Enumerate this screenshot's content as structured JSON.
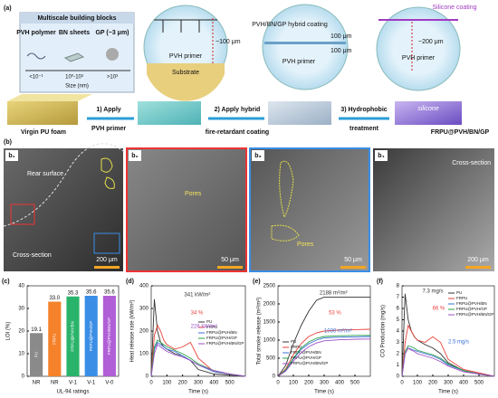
{
  "figure": {
    "a": {
      "label": "(a)",
      "blocks_title": "Multiscale building blocks",
      "pvh": "PVH polymer",
      "bn": "BN sheets",
      "gp": "GP (~3 μm)",
      "size_pvh": "<10⁻¹",
      "size_bn": "10⁰-10³",
      "size_gp": ">10³",
      "size_axis": "Size (nm)",
      "c1_thick": "~100 μm",
      "c1_primer": "PVH primer",
      "c1_substrate": "Substrate",
      "c2_coating": "PVH/BN/GP hybrid coating",
      "c2_t1": "100 μm",
      "c2_t2": "100 μm",
      "c2_primer": "PVH primer",
      "c3_silicone": "Silicone coating",
      "c3_thick": "~200 μm",
      "c3_primer": "PVH primer",
      "foam": "Virgin PU foam",
      "step1a": "1) Apply",
      "step1b": "PVH primer",
      "step2a": "2) Apply hybrid",
      "step2b": "fire-retardant coating",
      "step3a": "3) Hydrophobic",
      "step3b": "treatment",
      "product": "FRPU@PVH/BN/GP",
      "silicone": "silicone"
    },
    "b": {
      "label": "(b)",
      "b1": "b₁",
      "b2": "b₂",
      "b3": "b₃",
      "b4": "b₄",
      "b1_rear": "Rear surface",
      "b1_cross": "Cross-section",
      "b1_scale": "200 μm",
      "b2_pores": "Pores",
      "b2_scale": "50 μm",
      "b3_pores": "Pores",
      "b3_scale": "50 μm",
      "b4_cross": "Cross-section",
      "b4_scale": "200 μm"
    }
  },
  "chart_data": [
    {
      "type": "bar",
      "panel": "(c)",
      "ylabel": "LOI (%)",
      "xlabel": "UL-94 ratings",
      "categories": [
        "NR",
        "NR",
        "V-1",
        "V-1",
        "V-0"
      ],
      "bar_labels": [
        "PU",
        "FRPU",
        "FRPU@PVH/BN",
        "FRPU@PVH/GP",
        "FRPU@PVH/BN/GP"
      ],
      "values": [
        19.1,
        33,
        35.3,
        35.6,
        35.6
      ],
      "value_labels": [
        "19.1",
        "33.0",
        "35.3",
        "35.6",
        "35.6"
      ],
      "colors": [
        "#8a8a8a",
        "#f5822a",
        "#2ab36a",
        "#3a8ee6",
        "#b05fd6"
      ],
      "ylim": [
        0,
        40
      ],
      "yticks": [
        0,
        10,
        20,
        30,
        40
      ]
    },
    {
      "type": "line",
      "panel": "(d)",
      "ylabel": "Heat release rate (kW/m²)",
      "xlabel": "Time (s)",
      "x": [
        0,
        20,
        40,
        60,
        80,
        100,
        150,
        200,
        250,
        300,
        400,
        500,
        600
      ],
      "xlim": [
        0,
        600
      ],
      "xticks": [
        0,
        100,
        200,
        300,
        400,
        500
      ],
      "ylim": [
        0,
        400
      ],
      "yticks": [
        0,
        100,
        200,
        300,
        400
      ],
      "annotations": [
        "341 kW/m²",
        "34 %",
        "226 kW/m²"
      ],
      "series": [
        {
          "name": "PU",
          "color": "#333333",
          "values": [
            0,
            341,
            200,
            150,
            130,
            120,
            100,
            90,
            70,
            30,
            10,
            5,
            0
          ]
        },
        {
          "name": "FRPU",
          "color": "#e8413a",
          "values": [
            0,
            180,
            226,
            200,
            160,
            140,
            120,
            130,
            150,
            80,
            20,
            10,
            0
          ]
        },
        {
          "name": "FRPU@PVH/BN",
          "color": "#3b6fd6",
          "values": [
            0,
            120,
            150,
            140,
            130,
            120,
            110,
            90,
            70,
            50,
            20,
            10,
            0
          ]
        },
        {
          "name": "FRPU@PVH/GP",
          "color": "#2aa14a",
          "values": [
            0,
            130,
            160,
            150,
            140,
            130,
            115,
            100,
            80,
            55,
            25,
            10,
            0
          ]
        },
        {
          "name": "FRPU@PVH/BN/GP",
          "color": "#9b4fc4",
          "values": [
            0,
            100,
            140,
            130,
            120,
            110,
            95,
            85,
            70,
            50,
            25,
            10,
            0
          ]
        }
      ]
    },
    {
      "type": "line",
      "panel": "(e)",
      "ylabel": "Total smoke release (m²/m²)",
      "xlabel": "Time (s)",
      "x": [
        0,
        50,
        100,
        150,
        200,
        250,
        300,
        400,
        500,
        600
      ],
      "xlim": [
        0,
        600
      ],
      "xticks": [
        0,
        100,
        200,
        300,
        400,
        500
      ],
      "ylim": [
        0,
        2500
      ],
      "yticks": [
        0,
        500,
        1000,
        1500,
        2000,
        2500
      ],
      "annotations": [
        "2188 m²/m²",
        "53 %",
        "1030 m²/m²"
      ],
      "series": [
        {
          "name": "PU",
          "color": "#333333",
          "values": [
            0,
            300,
            900,
            1400,
            1800,
            2100,
            2188,
            2188,
            2188,
            2188
          ]
        },
        {
          "name": "FRPU",
          "color": "#e8413a",
          "values": [
            0,
            200,
            600,
            900,
            1100,
            1200,
            1250,
            1280,
            1290,
            1300
          ]
        },
        {
          "name": "FRPU@PVH/BN",
          "color": "#3b6fd6",
          "values": [
            0,
            160,
            480,
            740,
            900,
            1000,
            1060,
            1080,
            1090,
            1100
          ]
        },
        {
          "name": "FRPU@PVH/GP",
          "color": "#2aa14a",
          "values": [
            0,
            180,
            500,
            780,
            950,
            1050,
            1100,
            1120,
            1130,
            1130
          ]
        },
        {
          "name": "FRPU@PVH/BN/GP",
          "color": "#9b4fc4",
          "values": [
            0,
            140,
            420,
            650,
            820,
            920,
            980,
            1010,
            1025,
            1030
          ]
        }
      ]
    },
    {
      "type": "line",
      "panel": "(f)",
      "ylabel": "CO Production (mg/s)",
      "xlabel": "Time (s)",
      "x": [
        0,
        20,
        40,
        60,
        80,
        100,
        150,
        200,
        250,
        300,
        400,
        500,
        600
      ],
      "xlim": [
        0,
        600
      ],
      "xticks": [
        0,
        100,
        200,
        300,
        400,
        500
      ],
      "ylim": [
        0,
        8
      ],
      "yticks": [
        0,
        1,
        2,
        3,
        4,
        5,
        6,
        7,
        8
      ],
      "annotations": [
        "7.3 mg/s",
        "66 %",
        "2.5 mg/s"
      ],
      "series": [
        {
          "name": "PU",
          "color": "#333333",
          "values": [
            0,
            7.3,
            5,
            4,
            3.5,
            3.2,
            2.8,
            2.5,
            2,
            1.2,
            0.5,
            0.2,
            0
          ]
        },
        {
          "name": "FRPU",
          "color": "#e8413a",
          "values": [
            0,
            3,
            4.5,
            4,
            3.5,
            3.2,
            3,
            3.5,
            3,
            1.5,
            0.6,
            0.3,
            0
          ]
        },
        {
          "name": "FRPU@PVH/BN",
          "color": "#3b6fd6",
          "values": [
            0,
            2,
            2.5,
            2.4,
            2.3,
            2.2,
            2,
            1.8,
            1.5,
            1,
            0.5,
            0.2,
            0
          ]
        },
        {
          "name": "FRPU@PVH/GP",
          "color": "#2aa14a",
          "values": [
            0,
            2.2,
            2.7,
            2.6,
            2.5,
            2.3,
            2.1,
            1.9,
            1.6,
            1.1,
            0.5,
            0.2,
            0
          ]
        },
        {
          "name": "FRPU@PVH/BN/GP",
          "color": "#9b4fc4",
          "values": [
            0,
            2,
            2.5,
            2.3,
            2.2,
            2,
            1.8,
            1.6,
            1.3,
            0.9,
            0.4,
            0.2,
            0
          ]
        }
      ]
    }
  ]
}
